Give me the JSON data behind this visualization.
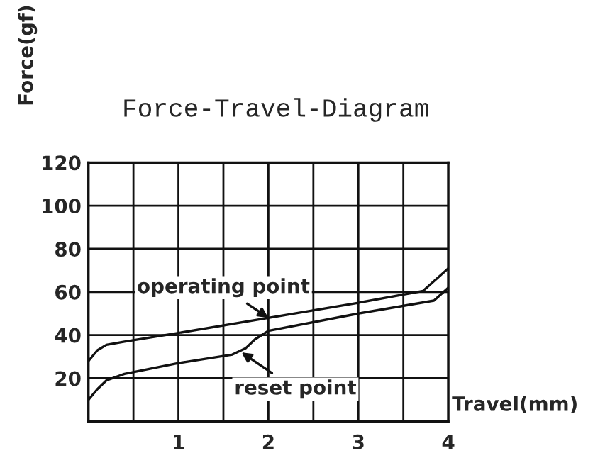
{
  "chart_data": {
    "type": "line",
    "title": "Force-Travel-Diagram",
    "xlabel": "Travel(mm)",
    "ylabel": "Force(gf)",
    "series": [
      {
        "color": "#111111",
        "x": [
          0,
          0.1,
          0.2,
          0.4,
          1,
          2,
          3,
          3.72,
          4
        ],
        "values": [
          28,
          33,
          35.5,
          37,
          41,
          48,
          55,
          60.5,
          71
        ]
      },
      {
        "color": "#111111",
        "x": [
          0,
          0.1,
          0.2,
          0.4,
          1,
          1.6,
          1.75,
          1.85,
          2,
          3,
          3.84,
          4
        ],
        "values": [
          10,
          15,
          19,
          22,
          27,
          31,
          34,
          38,
          42,
          50,
          56,
          62
        ]
      }
    ],
    "annotations": [
      {
        "text": "operating point",
        "x": 2,
        "y": 48
      },
      {
        "text": "reset point",
        "x": 1.7,
        "y": 32
      }
    ],
    "xlim": [
      0,
      4
    ],
    "ylim": [
      0,
      120
    ],
    "xticks": [
      {
        "value": 0,
        "label": null
      },
      {
        "value": 0.5,
        "label": null
      },
      1,
      {
        "value": 1.5,
        "label": null
      },
      2,
      {
        "value": 2.5,
        "label": null
      },
      3,
      {
        "value": 3.5,
        "label": null
      },
      4
    ],
    "yticks": [
      {
        "value": 0,
        "label": null
      },
      20,
      40,
      60,
      80,
      100,
      120
    ],
    "grid": true,
    "marker": "none",
    "line_style": "solid"
  }
}
